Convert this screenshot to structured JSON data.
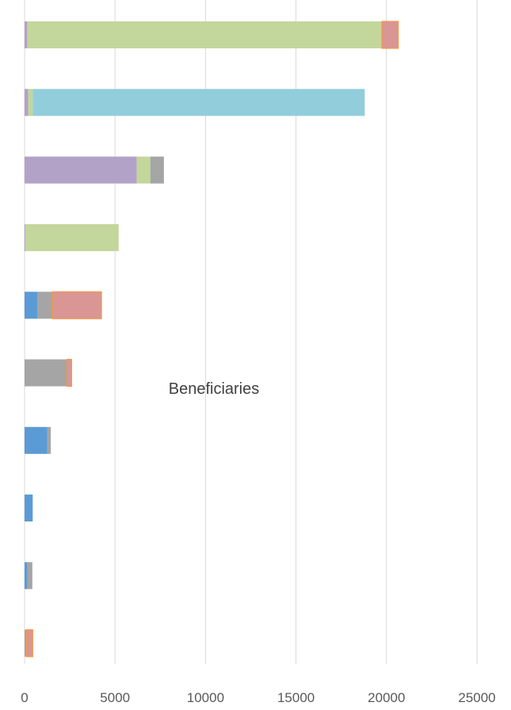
{
  "chart_data": {
    "type": "bar",
    "orientation": "horizontal",
    "stacked": true,
    "annotation": "Beneficiaries",
    "xlim": [
      0,
      25000
    ],
    "x_ticks": [
      "0",
      "5000",
      "10000",
      "15000",
      "20000",
      "25000"
    ],
    "grid": "vertical",
    "legend": "none",
    "colors": {
      "blue": "#5b9bd5",
      "gray": "#a5a5a5",
      "red": "#d99694",
      "purple": "#b3a2c7",
      "green": "#c3d69b",
      "teal": "#92cddc",
      "orange_edge": "#f79646",
      "grid": "#d9d9d9",
      "tick_text": "#595959"
    },
    "bars": [
      {
        "segments": [
          {
            "color": "purple",
            "value": 150
          },
          {
            "color": "green",
            "value": 19600
          },
          {
            "color": "red",
            "value": 900,
            "edge": "orange_edge"
          }
        ]
      },
      {
        "segments": [
          {
            "color": "purple",
            "value": 200
          },
          {
            "color": "green",
            "value": 250
          },
          {
            "color": "teal",
            "value": 18350
          }
        ]
      },
      {
        "segments": [
          {
            "color": "purple",
            "value": 6200
          },
          {
            "color": "green",
            "value": 750
          },
          {
            "color": "gray",
            "value": 750
          }
        ]
      },
      {
        "segments": [
          {
            "color": "purple",
            "value": 50
          },
          {
            "color": "green",
            "value": 5150
          }
        ]
      },
      {
        "segments": [
          {
            "color": "blue",
            "value": 700
          },
          {
            "color": "gray",
            "value": 850
          },
          {
            "color": "red",
            "value": 2700,
            "edge": "orange_edge"
          }
        ]
      },
      {
        "segments": [
          {
            "color": "gray",
            "value": 2350
          },
          {
            "color": "red",
            "value": 250,
            "edge": "orange_edge"
          }
        ]
      },
      {
        "segments": [
          {
            "color": "blue",
            "value": 1250
          },
          {
            "color": "gray",
            "value": 200
          }
        ]
      },
      {
        "segments": [
          {
            "color": "blue",
            "value": 450
          }
        ]
      },
      {
        "segments": [
          {
            "color": "blue",
            "value": 150
          },
          {
            "color": "gray",
            "value": 280
          }
        ]
      },
      {
        "segments": [
          {
            "color": "gray",
            "value": 100
          },
          {
            "color": "red",
            "value": 350,
            "edge": "orange_edge"
          }
        ]
      }
    ]
  }
}
